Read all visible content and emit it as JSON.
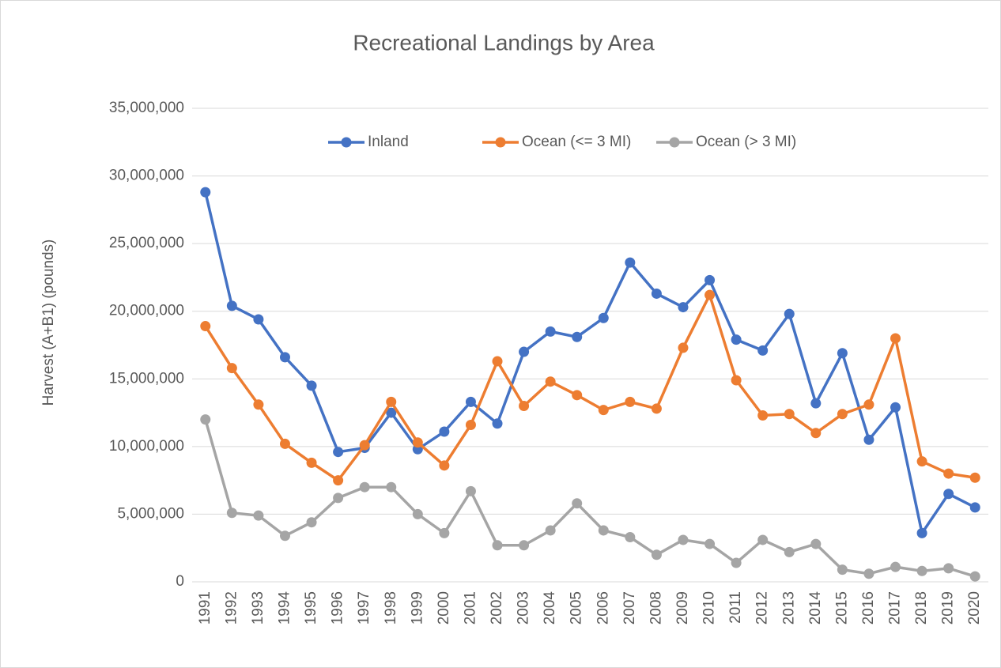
{
  "chart_data": {
    "type": "line",
    "title": "Recreational Landings by Area",
    "y_label": "Harvest (A+B1) (pounds)",
    "categories": [
      "1991",
      "1992",
      "1993",
      "1994",
      "1995",
      "1996",
      "1997",
      "1998",
      "1999",
      "2000",
      "2001",
      "2002",
      "2003",
      "2004",
      "2005",
      "2006",
      "2007",
      "2008",
      "2009",
      "2010",
      "2011",
      "2012",
      "2013",
      "2014",
      "2015",
      "2016",
      "2017",
      "2018",
      "2019",
      "2020"
    ],
    "series": [
      {
        "name": "Inland",
        "color": "#4472c4",
        "values": [
          28800000,
          20400000,
          19400000,
          16600000,
          14500000,
          9600000,
          9900000,
          12500000,
          9800000,
          11100000,
          13300000,
          11700000,
          17000000,
          18500000,
          18100000,
          19500000,
          23600000,
          21300000,
          20300000,
          22300000,
          17900000,
          17100000,
          19800000,
          13200000,
          16900000,
          10500000,
          12900000,
          3600000,
          6500000,
          5500000
        ]
      },
      {
        "name": "Ocean (<= 3 MI)",
        "color": "#ed7d31",
        "values": [
          18900000,
          15800000,
          13100000,
          10200000,
          8800000,
          7500000,
          10100000,
          13300000,
          10300000,
          8600000,
          11600000,
          16300000,
          13000000,
          14800000,
          13800000,
          12700000,
          13300000,
          12800000,
          17300000,
          21200000,
          14900000,
          12300000,
          12400000,
          11000000,
          12400000,
          13100000,
          18000000,
          8900000,
          8000000,
          7700000
        ]
      },
      {
        "name": "Ocean (> 3 MI)",
        "color": "#a5a5a5",
        "values": [
          12000000,
          5100000,
          4900000,
          3400000,
          4400000,
          6200000,
          7000000,
          7000000,
          5000000,
          3600000,
          6700000,
          2700000,
          2700000,
          3800000,
          5800000,
          3800000,
          3300000,
          2000000,
          3100000,
          2800000,
          1400000,
          3100000,
          2200000,
          2800000,
          900000,
          600000,
          1100000,
          800000,
          1000000,
          400000
        ]
      }
    ],
    "ylim": [
      0,
      35000000
    ],
    "yticks": [
      0,
      {
        "value": 5000000,
        "label": "5,000,000"
      },
      {
        "value": 10000000,
        "label": "10,000,000"
      },
      {
        "value": 15000000,
        "label": "15,000,000"
      },
      {
        "value": 20000000,
        "label": "20,000,000"
      },
      {
        "value": 25000000,
        "label": "25,000,000"
      },
      {
        "value": 30000000,
        "label": "30,000,000"
      },
      {
        "value": 35000000,
        "label": "35,000,000"
      }
    ],
    "grid": true,
    "legend": "top"
  }
}
